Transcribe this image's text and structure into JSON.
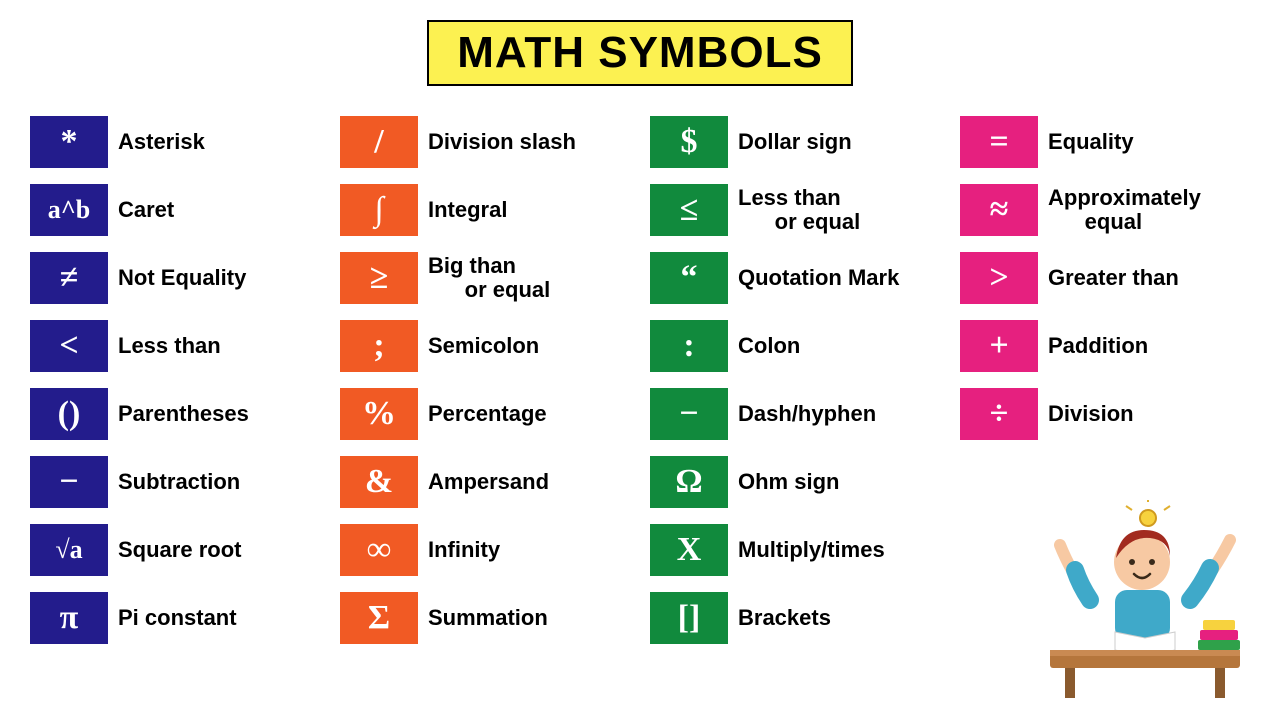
{
  "title": "MATH SYMBOLS",
  "title_bg": "#fcf151",
  "title_color": "#000000",
  "background_color": "#ffffff",
  "label_color": "#000000",
  "label_fontsize": 22,
  "chip_width": 78,
  "chip_height": 52,
  "chip_fontsize": 34,
  "columns": [
    {
      "color": "#231c8c",
      "items": [
        {
          "symbol": "*",
          "label": "Asterisk"
        },
        {
          "symbol": "a^b",
          "label": "Caret",
          "small": true
        },
        {
          "symbol": "≠",
          "label": "Not Equality"
        },
        {
          "symbol": "<",
          "label": "Less than"
        },
        {
          "symbol": "()",
          "label": "Parentheses"
        },
        {
          "symbol": "−",
          "label": "Subtraction"
        },
        {
          "symbol": "√a",
          "label": "Square root",
          "small": true
        },
        {
          "symbol": "π",
          "label": "Pi constant"
        }
      ]
    },
    {
      "color": "#f15a24",
      "items": [
        {
          "symbol": "/",
          "label": "Division slash"
        },
        {
          "symbol": "∫",
          "label": "Integral"
        },
        {
          "symbol": "≥",
          "label": "Big than\n      or equal"
        },
        {
          "symbol": ";",
          "label": "Semicolon"
        },
        {
          "symbol": "%",
          "label": "Percentage"
        },
        {
          "symbol": "&",
          "label": "Ampersand"
        },
        {
          "symbol": "∞",
          "label": "Infinity"
        },
        {
          "symbol": "Σ",
          "label": "Summation"
        }
      ]
    },
    {
      "color": "#118a3d",
      "items": [
        {
          "symbol": "$",
          "label": "Dollar sign"
        },
        {
          "symbol": "≤",
          "label": "Less than\n      or equal"
        },
        {
          "symbol": "“",
          "label": "Quotation Mark"
        },
        {
          "symbol": ":",
          "label": "Colon"
        },
        {
          "symbol": "−",
          "label": "Dash/hyphen"
        },
        {
          "symbol": "Ω",
          "label": "Ohm sign"
        },
        {
          "symbol": "X",
          "label": "Multiply/times"
        },
        {
          "symbol": "[]",
          "label": "Brackets"
        }
      ]
    },
    {
      "color": "#e6207f",
      "items": [
        {
          "symbol": "=",
          "label": "Equality"
        },
        {
          "symbol": "≈",
          "label": "Approximately\n      equal"
        },
        {
          "symbol": ">",
          "label": "Greater than"
        },
        {
          "symbol": "+",
          "label": "Paddition"
        },
        {
          "symbol": "÷",
          "label": "Division"
        }
      ]
    }
  ],
  "illustration": {
    "desk_color": "#b5763c",
    "hair_color": "#a22b1f",
    "shirt_color": "#3fa9c9",
    "skin_color": "#f7c9a3",
    "book_colors": [
      "#2fa14a",
      "#e6207f",
      "#f7d23e"
    ]
  }
}
